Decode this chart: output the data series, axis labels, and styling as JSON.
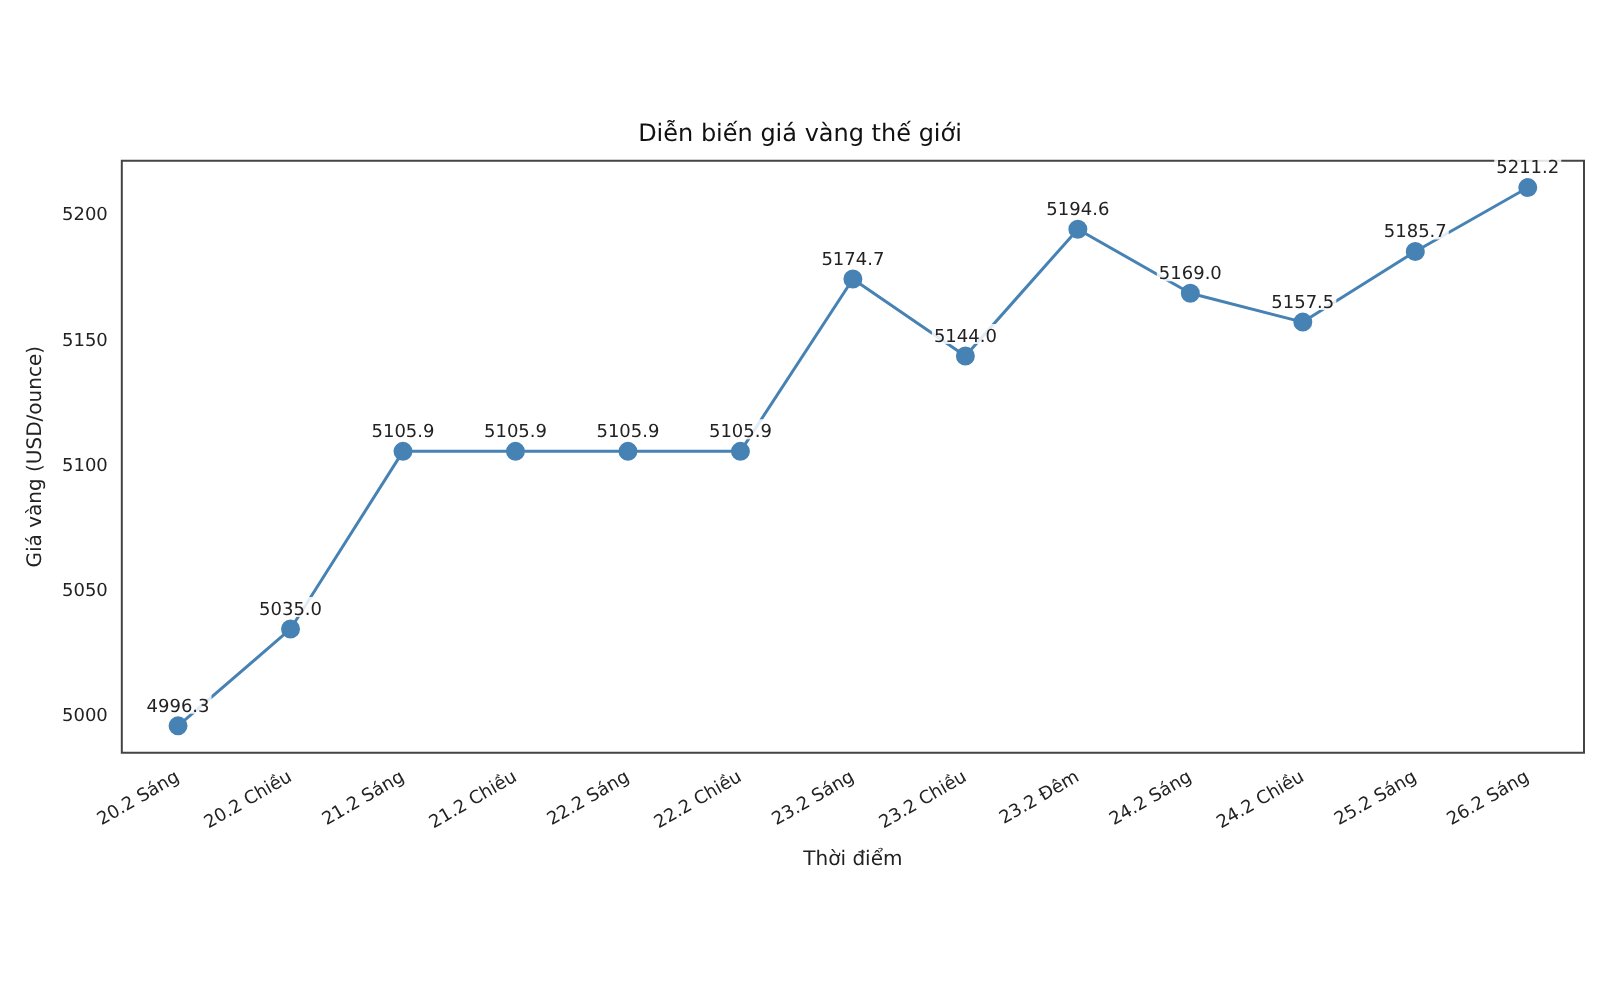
{
  "chart_data": {
    "type": "line",
    "title": "Diễn biến giá vàng thế giới",
    "xlabel": "Thời điểm",
    "ylabel": "Giá vàng (USD/ounce)",
    "categories": [
      "20.2 Sáng",
      "20.2 Chiều",
      "21.2 Sáng",
      "21.2 Chiều",
      "22.2 Sáng",
      "22.2 Chiều",
      "23.2 Sáng",
      "23.2 Chiều",
      "23.2 Đêm",
      "24.2 Sáng",
      "24.2 Chiều",
      "25.2 Sáng",
      "26.2 Sáng"
    ],
    "series": [
      {
        "color": "#4682b4",
        "values": [
          4996.3,
          5035.0,
          5105.9,
          5105.9,
          5105.9,
          5105.9,
          5174.7,
          5144.0,
          5194.6,
          5169.0,
          5157.5,
          5185.7,
          5211.2
        ],
        "value_labels": [
          "4996.3",
          "5035.0",
          "5105.9",
          "5105.9",
          "5105.9",
          "5105.9",
          "5174.7",
          "5144.0",
          "5194.6",
          "5169.0",
          "5157.5",
          "5185.7",
          "5211.2"
        ]
      }
    ],
    "ylim": [
      4985.6,
      5221.9
    ],
    "yticks": [
      5000,
      5050,
      5100,
      5150,
      5200
    ],
    "grid": false,
    "legend": false,
    "marker": "circle",
    "line_style": "solid"
  }
}
